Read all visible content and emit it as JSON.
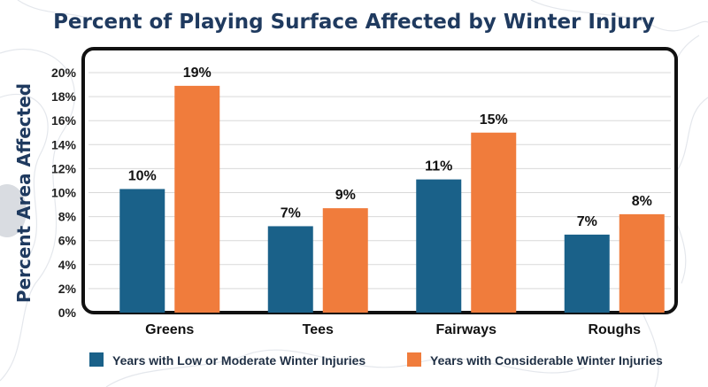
{
  "chart_data": {
    "type": "bar",
    "title": "Percent of Playing Surface Affected by Winter Injury",
    "xlabel": "",
    "ylabel": "Percent Area Affected",
    "categories": [
      "Greens",
      "Tees",
      "Fairways",
      "Roughs"
    ],
    "series": [
      {
        "name": "Years with Low or Moderate Winter Injuries",
        "values": [
          10.3,
          7.2,
          11.1,
          6.5
        ],
        "labels": [
          "10%",
          "7%",
          "11%",
          "7%"
        ],
        "color": "#1a6189"
      },
      {
        "name": "Years with Considerable Winter Injuries",
        "values": [
          18.9,
          8.7,
          15.0,
          8.2
        ],
        "labels": [
          "19%",
          "9%",
          "15%",
          "8%"
        ],
        "color": "#f07c3c"
      }
    ],
    "ylim": [
      0,
      20
    ],
    "yticks": [
      "0%",
      "2%",
      "4%",
      "6%",
      "8%",
      "10%",
      "12%",
      "14%",
      "16%",
      "18%",
      "20%"
    ],
    "grid": true,
    "legend_position": "bottom"
  },
  "colors": {
    "title": "#1f3a5f",
    "frame": "#111111",
    "grid": "#d9d9d9",
    "background_lines": "#e6e8ec"
  }
}
